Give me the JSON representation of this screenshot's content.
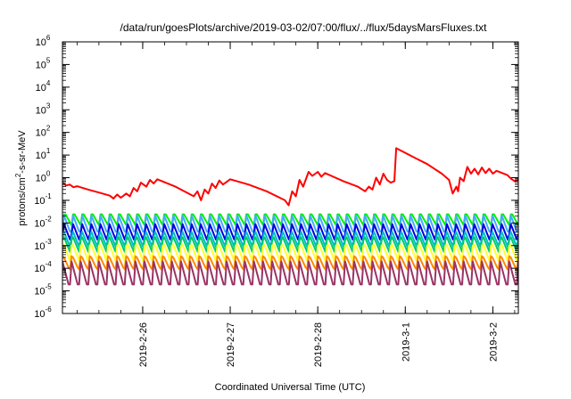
{
  "chart_data": {
    "type": "line",
    "title": "/data/run/goesPlots/archive/2019-03-02/07:00/flux/../flux/5daysMarsFluxes.txt",
    "xlabel": "Coordinated Universal Time (UTC)",
    "ylabel": "protons/cm2-s-sr-MeV",
    "ylabel_parts": {
      "pre": "protons/cm",
      "sup": "2",
      "post": "-s-sr-MeV"
    },
    "yscale": "log",
    "ylim": [
      1e-06,
      1000000.0
    ],
    "yticks": [
      {
        "value": 1e-06,
        "base": "10",
        "exp": "-6"
      },
      {
        "value": 1e-05,
        "base": "10",
        "exp": "-5"
      },
      {
        "value": 0.0001,
        "base": "10",
        "exp": "-4"
      },
      {
        "value": 0.001,
        "base": "10",
        "exp": "-3"
      },
      {
        "value": 0.01,
        "base": "10",
        "exp": "-2"
      },
      {
        "value": 0.1,
        "base": "10",
        "exp": "-1"
      },
      {
        "value": 1,
        "base": "10",
        "exp": "0"
      },
      {
        "value": 10,
        "base": "10",
        "exp": "1"
      },
      {
        "value": 100,
        "base": "10",
        "exp": "2"
      },
      {
        "value": 1000,
        "base": "10",
        "exp": "3"
      },
      {
        "value": 10000,
        "base": "10",
        "exp": "4"
      },
      {
        "value": 100000,
        "base": "10",
        "exp": "5"
      },
      {
        "value": 1000000,
        "base": "10",
        "exp": "6"
      }
    ],
    "xlim": [
      "2019-02-25 02:00",
      "2019-03-02 07:00"
    ],
    "xticks": [
      {
        "value": "2019-02-26 00:00",
        "label": "2019-2-26"
      },
      {
        "value": "2019-02-27 00:00",
        "label": "2019-2-27"
      },
      {
        "value": "2019-02-28 00:00",
        "label": "2019-2-28"
      },
      {
        "value": "2019-03-01 00:00",
        "label": "2019-3-1"
      },
      {
        "value": "2019-03-02 00:00",
        "label": "2019-3-2"
      }
    ],
    "grid": false,
    "legend": "none",
    "main_series": {
      "color": "#ff0000",
      "points": [
        [
          "2019-02-25 02:00",
          0.6
        ],
        [
          "2019-02-25 03:00",
          0.45
        ],
        [
          "2019-02-25 04:00",
          0.5
        ],
        [
          "2019-02-25 05:00",
          0.38
        ],
        [
          "2019-02-25 06:00",
          0.42
        ],
        [
          "2019-02-25 09:00",
          0.3
        ],
        [
          "2019-02-25 12:00",
          0.22
        ],
        [
          "2019-02-25 15:00",
          0.16
        ],
        [
          "2019-02-25 16:00",
          0.12
        ],
        [
          "2019-02-25 17:00",
          0.18
        ],
        [
          "2019-02-25 18:00",
          0.13
        ],
        [
          "2019-02-25 19:30",
          0.2
        ],
        [
          "2019-02-25 20:30",
          0.15
        ],
        [
          "2019-02-25 21:30",
          0.35
        ],
        [
          "2019-02-25 22:30",
          0.25
        ],
        [
          "2019-02-25 23:30",
          0.6
        ],
        [
          "2019-02-26 01:00",
          0.4
        ],
        [
          "2019-02-26 02:00",
          0.8
        ],
        [
          "2019-02-26 03:00",
          0.55
        ],
        [
          "2019-02-26 04:00",
          0.85
        ],
        [
          "2019-02-26 09:00",
          0.4
        ],
        [
          "2019-02-26 14:00",
          0.15
        ],
        [
          "2019-02-26 15:00",
          0.25
        ],
        [
          "2019-02-26 16:00",
          0.1
        ],
        [
          "2019-02-26 17:00",
          0.3
        ],
        [
          "2019-02-26 18:00",
          0.2
        ],
        [
          "2019-02-26 19:00",
          0.55
        ],
        [
          "2019-02-26 20:00",
          0.35
        ],
        [
          "2019-02-26 21:00",
          0.75
        ],
        [
          "2019-02-26 22:00",
          0.5
        ],
        [
          "2019-02-27 00:00",
          0.85
        ],
        [
          "2019-02-27 05:00",
          0.5
        ],
        [
          "2019-02-27 10:00",
          0.25
        ],
        [
          "2019-02-27 15:00",
          0.1
        ],
        [
          "2019-02-27 16:00",
          0.06
        ],
        [
          "2019-02-27 17:00",
          0.25
        ],
        [
          "2019-02-27 18:00",
          0.15
        ],
        [
          "2019-02-27 19:00",
          0.8
        ],
        [
          "2019-02-27 20:00",
          0.4
        ],
        [
          "2019-02-27 21:30",
          1.8
        ],
        [
          "2019-02-27 22:30",
          1.2
        ],
        [
          "2019-02-28 00:00",
          1.8
        ],
        [
          "2019-02-28 01:00",
          1.1
        ],
        [
          "2019-02-28 02:00",
          1.6
        ],
        [
          "2019-02-28 07:00",
          0.7
        ],
        [
          "2019-02-28 11:00",
          0.4
        ],
        [
          "2019-02-28 13:00",
          0.25
        ],
        [
          "2019-02-28 14:00",
          0.4
        ],
        [
          "2019-02-28 15:00",
          0.3
        ],
        [
          "2019-02-28 16:00",
          1.0
        ],
        [
          "2019-02-28 17:00",
          0.5
        ],
        [
          "2019-02-28 18:00",
          1.5
        ],
        [
          "2019-02-28 19:00",
          0.8
        ],
        [
          "2019-02-28 20:00",
          0.6
        ],
        [
          "2019-02-28 21:00",
          0.7
        ],
        [
          "2019-02-28 21:30",
          20
        ],
        [
          "2019-03-01 03:00",
          7
        ],
        [
          "2019-03-01 06:00",
          4
        ],
        [
          "2019-03-01 10:00",
          1.5
        ],
        [
          "2019-03-01 12:00",
          0.8
        ],
        [
          "2019-03-01 13:00",
          0.2
        ],
        [
          "2019-03-01 14:00",
          0.4
        ],
        [
          "2019-03-01 14:30",
          0.25
        ],
        [
          "2019-03-01 15:00",
          1.0
        ],
        [
          "2019-03-01 16:00",
          0.7
        ],
        [
          "2019-03-01 17:00",
          3.0
        ],
        [
          "2019-03-01 18:00",
          1.5
        ],
        [
          "2019-03-01 19:00",
          2.5
        ],
        [
          "2019-03-01 20:00",
          1.4
        ],
        [
          "2019-03-01 21:00",
          2.8
        ],
        [
          "2019-03-01 22:00",
          1.6
        ],
        [
          "2019-03-01 23:00",
          2.5
        ],
        [
          "2019-03-02 00:00",
          1.5
        ],
        [
          "2019-03-02 01:00",
          2.0
        ],
        [
          "2019-03-02 04:00",
          1.3
        ],
        [
          "2019-03-02 05:00",
          0.9
        ],
        [
          "2019-03-02 06:00",
          0.7
        ],
        [
          "2019-03-02 07:00",
          0.8
        ]
      ]
    },
    "oscillating_series": [
      {
        "color": "#00ee00",
        "low": 0.008,
        "high": 0.03,
        "period_hours": 2.5,
        "phase_hours": 0.0
      },
      {
        "color": "#44aaff",
        "low": 0.003,
        "high": 0.022,
        "period_hours": 2.5,
        "phase_hours": 0.1
      },
      {
        "color": "#0000dd",
        "low": 0.0015,
        "high": 0.01,
        "period_hours": 2.5,
        "phase_hours": 0.2
      },
      {
        "color": "#00bbcc",
        "low": 0.0008,
        "high": 0.005,
        "period_hours": 2.5,
        "phase_hours": 0.3
      },
      {
        "color": "#00cc66",
        "low": 0.0005,
        "high": 0.003,
        "period_hours": 2.5,
        "phase_hours": 0.35
      },
      {
        "color": "#ffff33",
        "low": 0.0002,
        "high": 0.0015,
        "period_hours": 2.5,
        "phase_hours": 0.4
      },
      {
        "color": "#ff8800",
        "low": 8e-05,
        "high": 0.0004,
        "period_hours": 2.5,
        "phase_hours": 0.45
      },
      {
        "color": "#993366",
        "low": 1.2e-05,
        "high": 0.0002,
        "period_hours": 2.5,
        "phase_hours": 0.5
      }
    ]
  }
}
